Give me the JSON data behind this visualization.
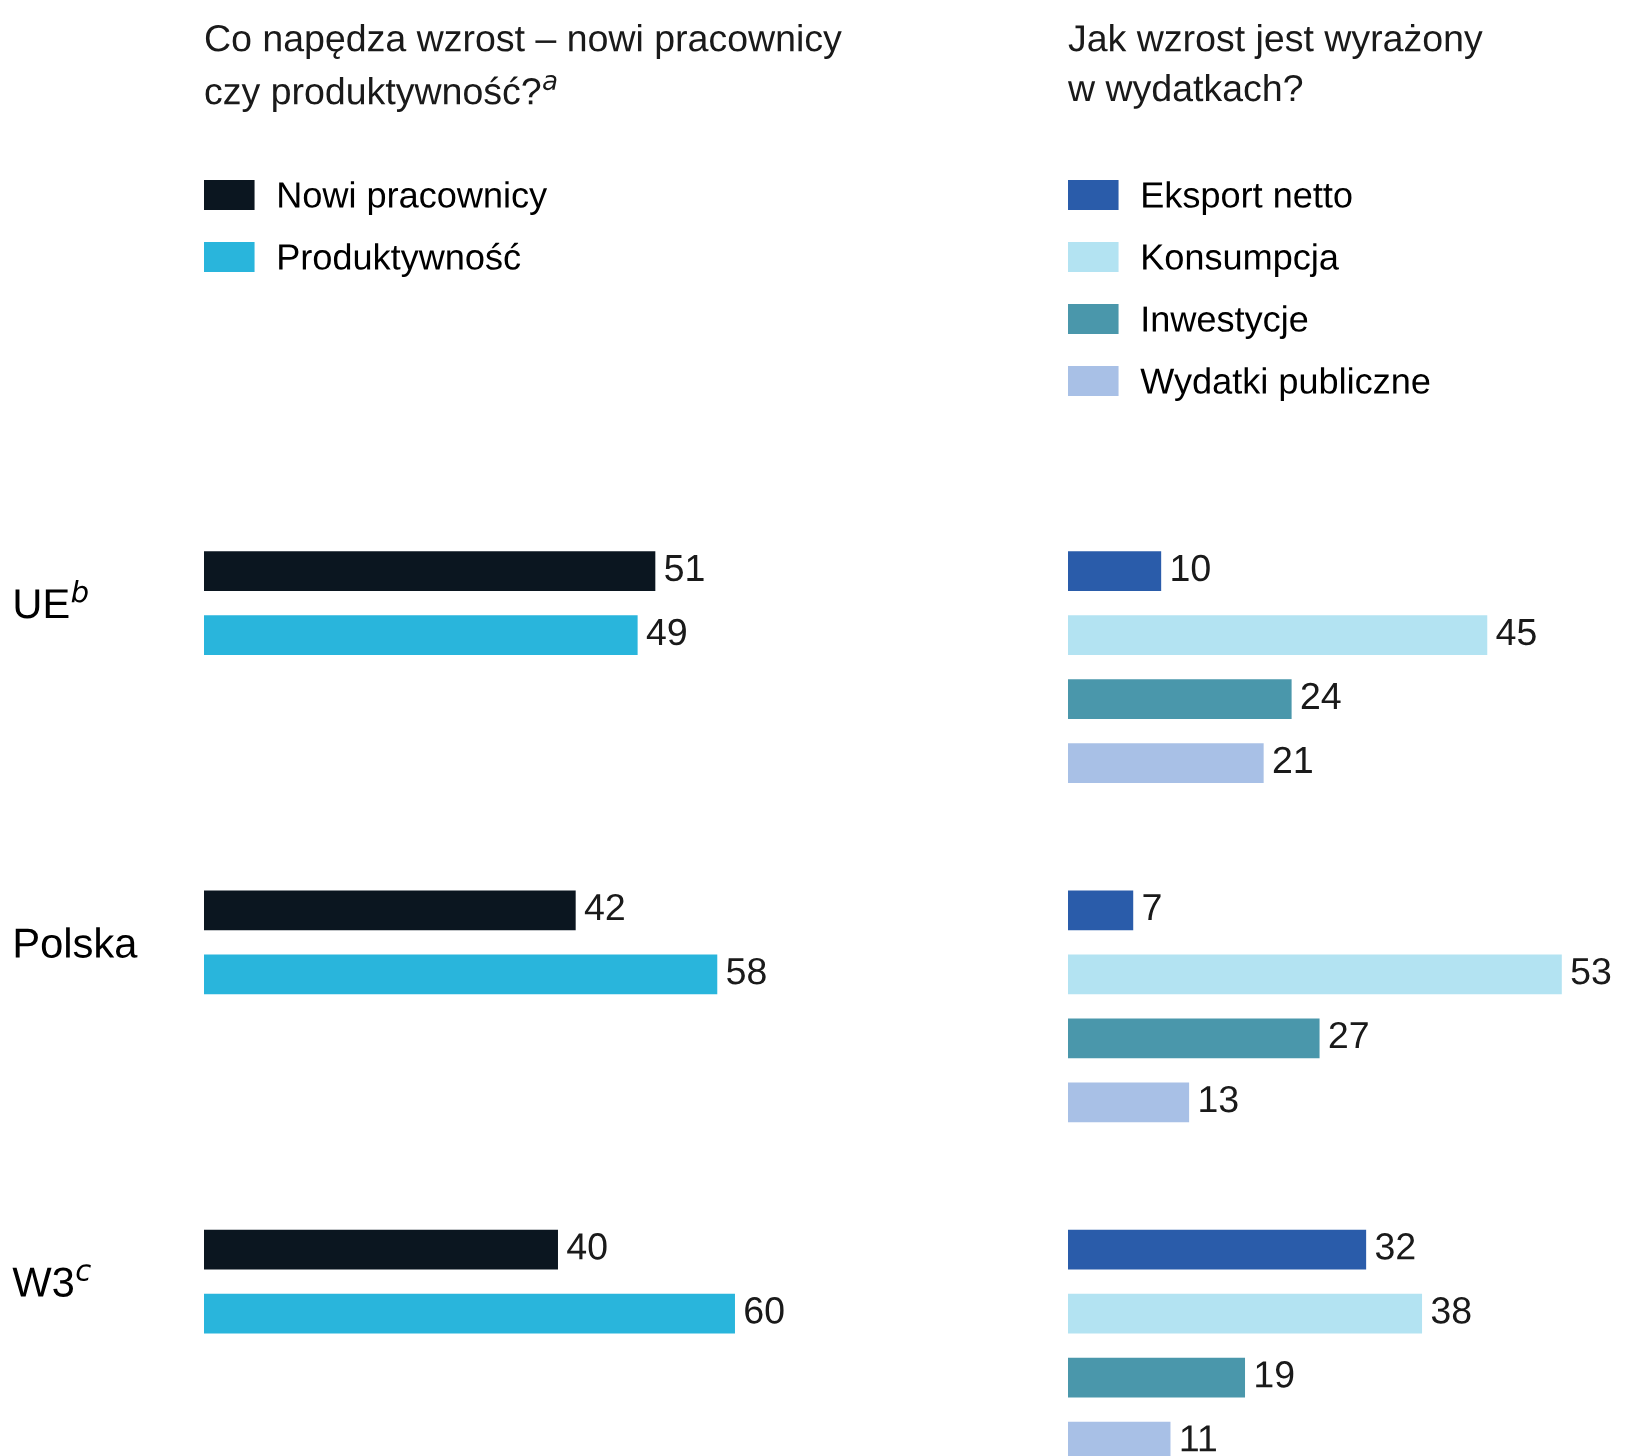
{
  "chart_data": [
    {
      "type": "bar",
      "orientation": "horizontal",
      "title": "Co napędza wzrost – nowi pracownicy\nczy produktywność?$^{a}$",
      "categories": [
        "UE$^{b}$",
        "Polska",
        "W3$^{c}$"
      ],
      "series": [
        {
          "name": "Nowi pracownicy",
          "color": "#0b1620",
          "values": [
            51,
            42,
            40
          ]
        },
        {
          "name": "Produktywność",
          "color": "#29b5dc",
          "values": [
            49,
            58,
            60
          ]
        }
      ],
      "data_labels": true,
      "legend": "top left",
      "tick_labels": "y"
    },
    {
      "type": "bar",
      "orientation": "horizontal",
      "title": "Jak wzrost jest wyrażony\nw wydatkach?",
      "categories": [
        null,
        null,
        null
      ],
      "series": [
        {
          "name": "Eksport netto",
          "color": "#2a5caa",
          "values": [
            10,
            7,
            32
          ]
        },
        {
          "name": "Konsumpcja",
          "color": "#b3e3f2",
          "values": [
            45,
            53,
            38
          ]
        },
        {
          "name": "Inwestycje",
          "color": "#4a97ab",
          "values": [
            24,
            27,
            19
          ]
        },
        {
          "name": "Wydatki publiczne",
          "color": "#a8c0e6",
          "values": [
            21,
            13,
            11
          ]
        }
      ],
      "data_labels": true,
      "legend": "top left",
      "tick_labels": false
    }
  ]
}
